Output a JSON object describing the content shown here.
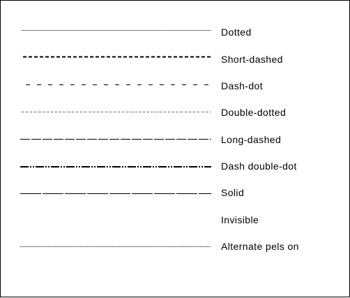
{
  "line_styles": [
    {
      "label": "Dotted"
    },
    {
      "label": "Short-dashed"
    },
    {
      "label": "Dash-dot"
    },
    {
      "label": "Double-dotted"
    },
    {
      "label": "Long-dashed"
    },
    {
      "label": "Dash double-dot"
    },
    {
      "label": "Solid"
    },
    {
      "label": "Invisible"
    },
    {
      "label": "Alternate pels on"
    }
  ],
  "colors": {
    "line": "#000000",
    "background": "#ffffff"
  }
}
